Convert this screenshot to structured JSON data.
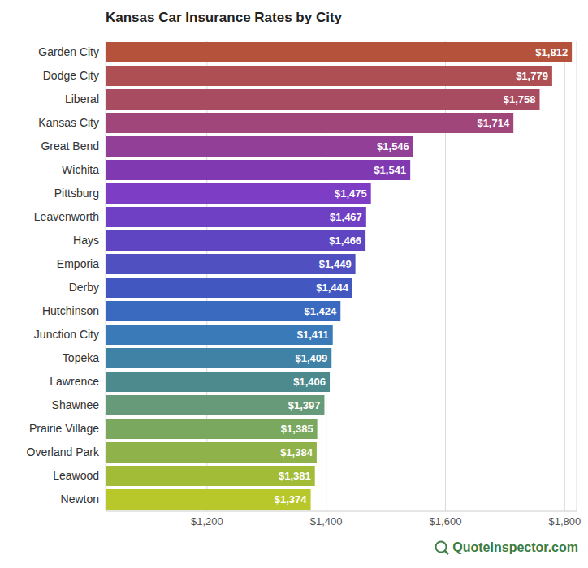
{
  "chart_data": {
    "type": "bar",
    "title": "Kansas Car Insurance Rates by City",
    "source": "QuoteInspector.com",
    "orientation": "horizontal",
    "categories": [
      "Garden City",
      "Dodge City",
      "Liberal",
      "Kansas City",
      "Great Bend",
      "Wichita",
      "Pittsburg",
      "Leavenworth",
      "Hays",
      "Emporia",
      "Derby",
      "Hutchinson",
      "Junction City",
      "Topeka",
      "Lawrence",
      "Shawnee",
      "Prairie Village",
      "Overland Park",
      "Leawood",
      "Newton"
    ],
    "values": [
      1812,
      1779,
      1758,
      1714,
      1546,
      1541,
      1475,
      1467,
      1466,
      1449,
      1444,
      1424,
      1411,
      1409,
      1406,
      1397,
      1385,
      1384,
      1381,
      1374
    ],
    "value_labels": [
      "$1,812",
      "$1,779",
      "$1,758",
      "$1,714",
      "$1,546",
      "$1,541",
      "$1,475",
      "$1,467",
      "$1,466",
      "$1,449",
      "$1,444",
      "$1,424",
      "$1,411",
      "$1,409",
      "$1,406",
      "$1,397",
      "$1,385",
      "$1,384",
      "$1,381",
      "$1,374"
    ],
    "data_labels": true,
    "colors": [
      "#b4523c",
      "#ae4f53",
      "#a84c62",
      "#a0467a",
      "#913f97",
      "#8039b0",
      "#7d3dc5",
      "#6f3fc4",
      "#6045c2",
      "#5050c0",
      "#4258c0",
      "#3a6abf",
      "#3a7ab8",
      "#3f82a6",
      "#4c8a8e",
      "#679a78",
      "#7aa85e",
      "#8fb24a",
      "#a2bc38",
      "#b8c72a"
    ],
    "xlim": [
      1030,
      1820
    ],
    "xticks": [
      {
        "value": 1200,
        "label": "$1,200"
      },
      {
        "value": 1400,
        "label": "$1,400"
      },
      {
        "value": 1600,
        "label": "$1,600"
      },
      {
        "value": 1800,
        "label": "$1,800"
      }
    ],
    "grid": true
  }
}
